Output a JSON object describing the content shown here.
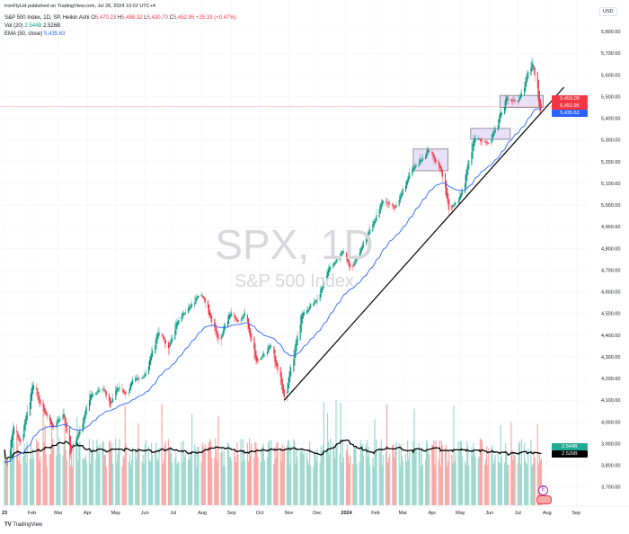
{
  "header": {
    "publisher": "IronFlyLtd published on TradingView.com, Jul 28, 2024 10:02 UTC+4",
    "symbol_line": "S&P 500 Index, 1D, SP, Heikin Ashi",
    "ohlc": {
      "o_label": "O",
      "o": "5,470.23",
      "h_label": "H",
      "h": "5,488.32",
      "l_label": "L",
      "l": "5,430.70",
      "c_label": "C",
      "c": "5,452.95",
      "change": "+25.33 (+0.47%)"
    },
    "vol_label": "Vol (20)",
    "vol_value": "2.544B",
    "vol_ma_value": "2.526B",
    "ema_label": "EMA (50, close)",
    "ema_value": "5,435.63"
  },
  "watermark": {
    "symbol": "SPX, 1D",
    "name": "S&P 500 Index"
  },
  "price_axis": {
    "currency": "USD"
  },
  "price_labels": {
    "ha_close": "5,459.09",
    "close": "5,452.95",
    "ema": "5,435.63",
    "vol": "2.544B",
    "vol_ma": "2.526B"
  },
  "footer": {
    "logo": "TradingView"
  },
  "event_icons": {
    "earnings": "E"
  },
  "colors": {
    "up": "#089981",
    "down": "#f23645",
    "ema": "#2962ff",
    "vol_up": "#9ed8cf",
    "vol_down": "#f7a9a7",
    "box": "#e5dcf8",
    "trendline": "#000000"
  },
  "chart_data": {
    "type": "candlestick",
    "style": "heikin-ashi",
    "timeframe": "1D",
    "ylim": [
      3650,
      5850
    ],
    "yticks": [
      3700,
      3800,
      3900,
      4000,
      4100,
      4200,
      4300,
      4400,
      4500,
      4600,
      4700,
      4800,
      4900,
      5000,
      5100,
      5200,
      5300,
      5400,
      5500,
      5600,
      5700,
      5800
    ],
    "ytick_labels": [
      "3,700.00",
      "3,800.00",
      "3,900.00",
      "4,000.00",
      "4,100.00",
      "4,200.00",
      "4,300.00",
      "4,400.00",
      "4,500.00",
      "4,600.00",
      "4,700.00",
      "4,800.00",
      "4,900.00",
      "5,000.00",
      "5,100.00",
      "5,200.00",
      "5,300.00",
      "5,400.00",
      "5,500.00",
      "5,600.00",
      "5,700.00",
      "5,800.00"
    ],
    "xlim": [
      "2023-01-01",
      "2024-09-01"
    ],
    "xticks": [
      {
        "date": "2023-01-01",
        "label": "23"
      },
      {
        "date": "2023-02-01",
        "label": "Feb"
      },
      {
        "date": "2023-03-01",
        "label": "Mar"
      },
      {
        "date": "2023-04-01",
        "label": "Apr"
      },
      {
        "date": "2023-05-01",
        "label": "May"
      },
      {
        "date": "2023-06-01",
        "label": "Jun"
      },
      {
        "date": "2023-07-01",
        "label": "Jul"
      },
      {
        "date": "2023-08-01",
        "label": "Aug"
      },
      {
        "date": "2023-09-01",
        "label": "Sep"
      },
      {
        "date": "2023-10-01",
        "label": "Oct"
      },
      {
        "date": "2023-11-01",
        "label": "Nov"
      },
      {
        "date": "2023-12-01",
        "label": "Dec"
      },
      {
        "date": "2024-01-01",
        "label": "2024"
      },
      {
        "date": "2024-02-01",
        "label": "Feb"
      },
      {
        "date": "2024-03-01",
        "label": "Mar"
      },
      {
        "date": "2024-04-01",
        "label": "Apr"
      },
      {
        "date": "2024-05-01",
        "label": "May"
      },
      {
        "date": "2024-06-01",
        "label": "Jun"
      },
      {
        "date": "2024-07-01",
        "label": "Jul"
      },
      {
        "date": "2024-08-01",
        "label": "Aug"
      },
      {
        "date": "2024-09-01",
        "label": "Sep"
      }
    ],
    "price_path": [
      [
        "2023-01-03",
        3825
      ],
      [
        "2023-01-05",
        3810
      ],
      [
        "2023-01-12",
        3980
      ],
      [
        "2023-01-19",
        3900
      ],
      [
        "2023-02-02",
        4180
      ],
      [
        "2023-02-09",
        4080
      ],
      [
        "2023-02-24",
        3970
      ],
      [
        "2023-03-06",
        4050
      ],
      [
        "2023-03-13",
        3855
      ],
      [
        "2023-03-24",
        3970
      ],
      [
        "2023-04-03",
        4120
      ],
      [
        "2023-04-18",
        4155
      ],
      [
        "2023-04-25",
        4070
      ],
      [
        "2023-05-01",
        4170
      ],
      [
        "2023-05-12",
        4125
      ],
      [
        "2023-05-19",
        4190
      ],
      [
        "2023-06-01",
        4220
      ],
      [
        "2023-06-15",
        4425
      ],
      [
        "2023-06-26",
        4330
      ],
      [
        "2023-07-03",
        4455
      ],
      [
        "2023-07-13",
        4510
      ],
      [
        "2023-07-31",
        4590
      ],
      [
        "2023-08-18",
        4370
      ],
      [
        "2023-08-31",
        4510
      ],
      [
        "2023-09-07",
        4450
      ],
      [
        "2023-09-14",
        4505
      ],
      [
        "2023-09-27",
        4275
      ],
      [
        "2023-10-12",
        4350
      ],
      [
        "2023-10-20",
        4225
      ],
      [
        "2023-10-27",
        4115
      ],
      [
        "2023-11-14",
        4495
      ],
      [
        "2023-11-30",
        4565
      ],
      [
        "2023-12-14",
        4720
      ],
      [
        "2023-12-28",
        4785
      ],
      [
        "2024-01-05",
        4700
      ],
      [
        "2024-01-24",
        4870
      ],
      [
        "2024-02-09",
        5025
      ],
      [
        "2024-02-21",
        4980
      ],
      [
        "2024-03-08",
        5150
      ],
      [
        "2024-03-28",
        5255
      ],
      [
        "2024-04-10",
        5160
      ],
      [
        "2024-04-19",
        4965
      ],
      [
        "2024-05-02",
        5060
      ],
      [
        "2024-05-15",
        5310
      ],
      [
        "2024-05-31",
        5275
      ],
      [
        "2024-06-18",
        5490
      ],
      [
        "2024-07-01",
        5480
      ],
      [
        "2024-07-16",
        5665
      ],
      [
        "2024-07-24",
        5425
      ],
      [
        "2024-07-26",
        5455
      ]
    ],
    "indicators": [
      {
        "name": "EMA (50, close)",
        "last": 5435.63
      },
      {
        "name": "Vol (20)",
        "last_volume_billions": 2.544,
        "last_ma_billions": 2.526
      }
    ],
    "drawings": {
      "trendline": {
        "from": [
          "2023-10-27",
          4100
        ],
        "to": [
          "2024-08-19",
          5543
        ]
      },
      "rectangles": [
        {
          "from": [
            "2024-03-12",
            5258
          ],
          "to": [
            "2024-04-18",
            5158
          ]
        },
        {
          "from": [
            "2024-05-12",
            5353
          ],
          "to": [
            "2024-06-23",
            5303
          ]
        },
        {
          "from": [
            "2024-06-12",
            5505
          ],
          "to": [
            "2024-07-28",
            5450
          ]
        }
      ],
      "horizontal_line": 5452.95
    }
  }
}
